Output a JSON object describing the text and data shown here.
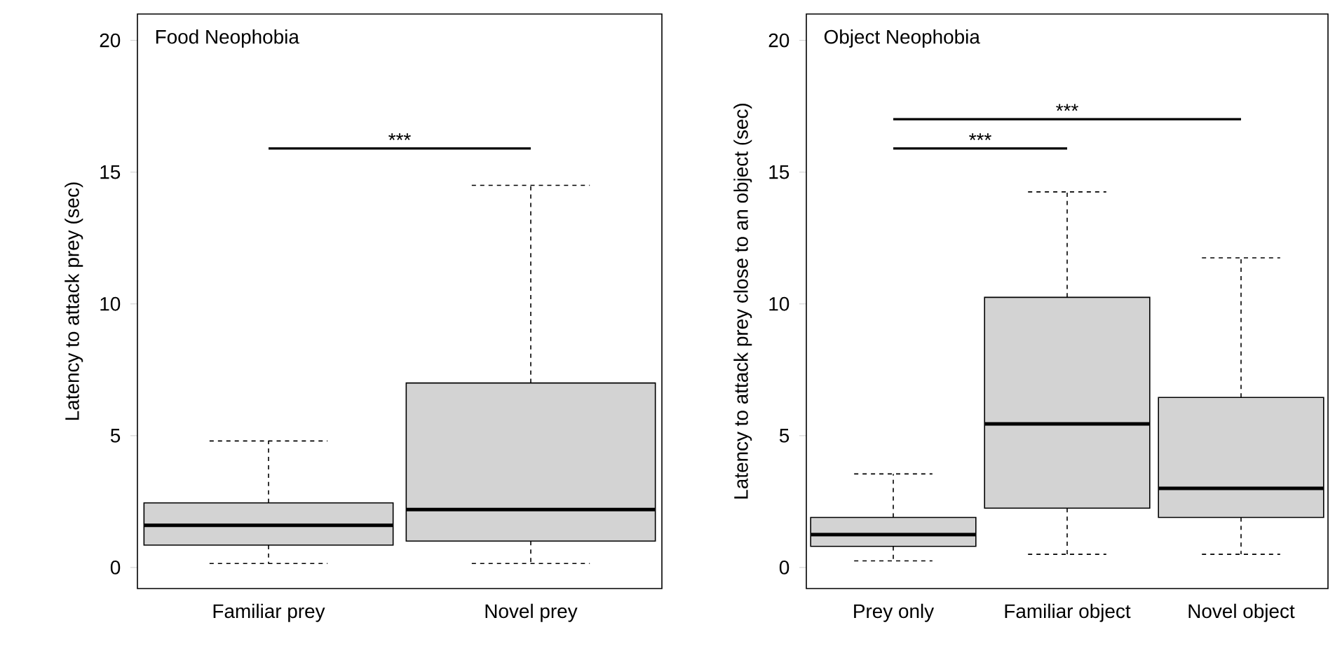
{
  "chart_data": [
    {
      "type": "box",
      "title": "Food Neophobia",
      "ylabel": "Latency to attack prey (sec)",
      "categories": [
        "Familiar prey",
        "Novel prey"
      ],
      "color": "#d3d3d3",
      "boxes": [
        {
          "low": 0.15,
          "q1": 0.85,
          "median": 1.6,
          "q3": 2.45,
          "high": 4.8
        },
        {
          "low": 0.15,
          "q1": 1.0,
          "median": 2.2,
          "q3": 7.0,
          "high": 14.5
        }
      ],
      "ylim": [
        -0.8,
        21
      ],
      "yticks": [
        0,
        5,
        10,
        15,
        20
      ],
      "annotations": [
        "***"
      ]
    },
    {
      "type": "box",
      "title": "Object Neophobia",
      "ylabel": "Latency to attack prey close to an object (sec)",
      "categories": [
        "Prey only",
        "Familiar object",
        "Novel object"
      ],
      "color": "#d3d3d3",
      "boxes": [
        {
          "low": 0.25,
          "q1": 0.8,
          "median": 1.25,
          "q3": 1.9,
          "high": 3.55
        },
        {
          "low": 0.5,
          "q1": 2.25,
          "median": 5.45,
          "q3": 10.25,
          "high": 14.25
        },
        {
          "low": 0.5,
          "q1": 1.9,
          "median": 3.0,
          "q3": 6.45,
          "high": 11.75
        }
      ],
      "ylim": [
        -0.8,
        21
      ],
      "yticks": [
        0,
        5,
        10,
        15,
        20
      ],
      "annotations": [
        "***",
        "***"
      ]
    }
  ]
}
